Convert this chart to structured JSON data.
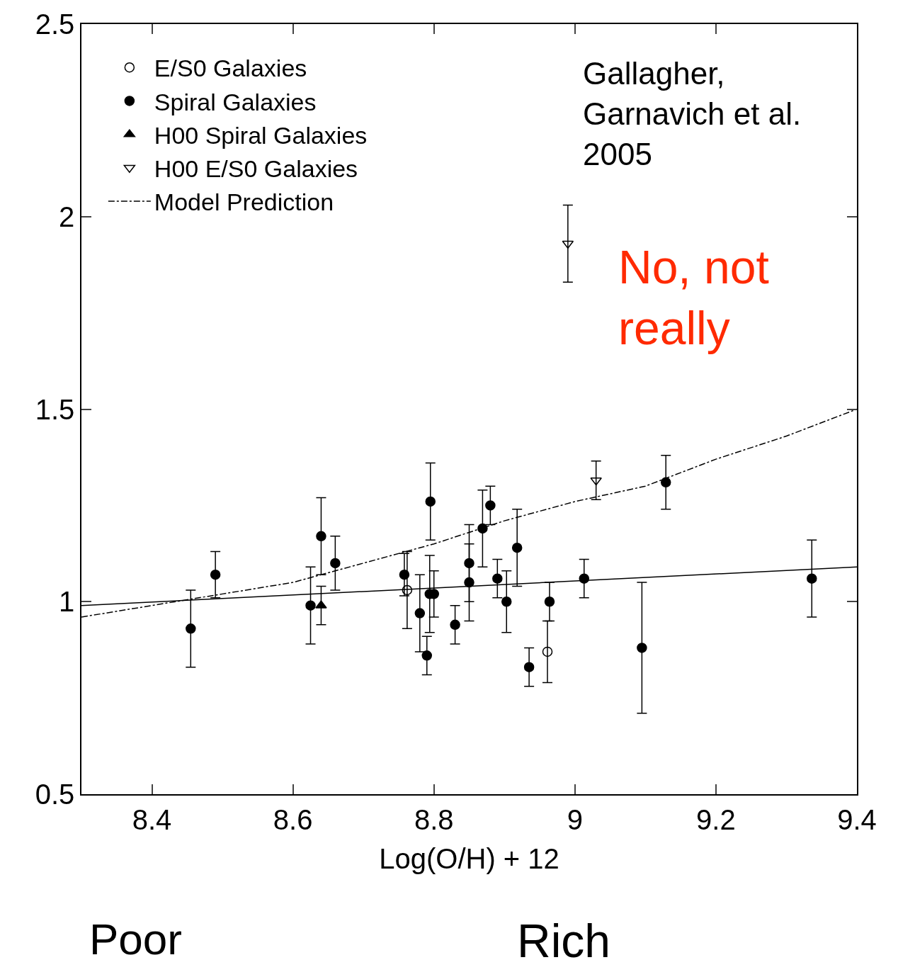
{
  "chart_data": {
    "type": "scatter",
    "xlabel": "Log(O/H) + 12",
    "xlim": [
      8.3,
      9.4
    ],
    "xticks": [
      8.4,
      8.6,
      8.8,
      9,
      9.2,
      9.4
    ],
    "ylim": [
      0.5,
      2.5
    ],
    "yticks": [
      0.5,
      1,
      1.5,
      2,
      2.5
    ],
    "legend": "top left",
    "series": [
      {
        "name": "E/S0 Galaxies",
        "color": "#000000",
        "marker": "circle-open",
        "x": [
          8.762,
          8.961
        ],
        "values": [
          1.03,
          0.87
        ],
        "errors": [
          0.1,
          0.08
        ]
      },
      {
        "name": "Spiral Galaxies",
        "color": "#000000",
        "marker": "circle",
        "x": [
          8.455,
          8.49,
          8.625,
          8.64,
          8.66,
          8.758,
          8.78,
          8.79,
          8.794,
          8.8,
          8.795,
          8.83,
          8.85,
          8.85,
          8.869,
          8.88,
          8.89,
          8.903,
          8.918,
          8.935,
          8.964,
          9.013,
          9.095,
          9.129,
          9.336
        ],
        "values": [
          0.93,
          1.07,
          0.99,
          1.17,
          1.1,
          1.07,
          0.97,
          0.86,
          1.02,
          1.02,
          1.26,
          0.94,
          1.1,
          1.05,
          1.19,
          1.25,
          1.06,
          1.0,
          1.14,
          0.83,
          1.0,
          1.06,
          0.88,
          1.31,
          1.06
        ],
        "errors": [
          0.1,
          0.06,
          0.1,
          0.1,
          0.07,
          0.055,
          0.1,
          0.05,
          0.1,
          0.06,
          0.1,
          0.05,
          0.1,
          0.1,
          0.1,
          0.05,
          0.05,
          0.08,
          0.1,
          0.05,
          0.05,
          0.05,
          0.17,
          0.07,
          0.1
        ]
      },
      {
        "name": "H00 Spiral Galaxies",
        "color": "#000000",
        "marker": "triangle",
        "x": [
          8.64
        ],
        "values": [
          0.99
        ],
        "errors": [
          0.05
        ]
      },
      {
        "name": "H00 E/S0 Galaxies",
        "color": "#000000",
        "marker": "triangle-down-open",
        "x": [
          8.99,
          9.03
        ],
        "values": [
          1.93,
          1.315
        ],
        "errors": [
          0.1,
          0.05
        ]
      },
      {
        "name": "Model Prediction",
        "type": "line",
        "line_style": "dashdot",
        "color": "#000000",
        "x": [
          8.3,
          8.4,
          8.5,
          8.6,
          8.7,
          8.8,
          8.9,
          9.0,
          9.1,
          9.2,
          9.3,
          9.4
        ],
        "values": [
          0.96,
          0.99,
          1.02,
          1.05,
          1.1,
          1.15,
          1.21,
          1.26,
          1.3,
          1.37,
          1.43,
          1.5
        ]
      },
      {
        "type": "line",
        "line_style": "solid",
        "color": "#000000",
        "x": [
          8.3,
          9.4
        ],
        "values": [
          0.99,
          1.09
        ]
      }
    ],
    "annotations": [
      "Gallagher,\nGarnavich et al.\n2005",
      "No, not really",
      "Poor",
      "Rich"
    ]
  }
}
